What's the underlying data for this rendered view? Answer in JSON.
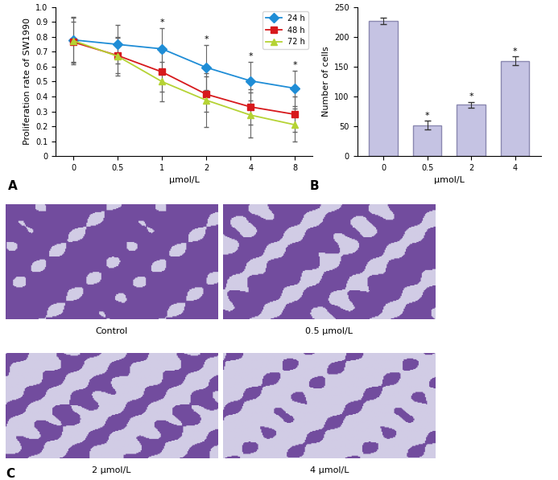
{
  "chart_data": [
    {
      "type": "line",
      "panel_label": "A",
      "x_label": "μmol/L",
      "y_label": "Proliferation rate of SW1990",
      "categories": [
        "0",
        "0.5",
        "1",
        "2",
        "4",
        "8"
      ],
      "ylim": [
        0,
        1.0
      ],
      "yticks": [
        0,
        0.1,
        0.2,
        0.3,
        0.4,
        0.5,
        0.6,
        0.7,
        0.8,
        0.9,
        {
          "value": 1,
          "label": "1.0"
        }
      ],
      "legend": "upper right",
      "significance": [
        null,
        null,
        "*",
        "*",
        "*",
        "*"
      ],
      "series": [
        {
          "name": "24 h",
          "color": "#1f8dd6",
          "marker": "diamond",
          "values": [
            0.78,
            0.75,
            0.72,
            0.595,
            0.505,
            0.455
          ],
          "errors": [
            0.15,
            0.13,
            0.14,
            0.15,
            0.13,
            0.12
          ]
        },
        {
          "name": "48 h",
          "color": "#d7191c",
          "marker": "square",
          "values": [
            0.765,
            0.675,
            0.565,
            0.415,
            0.33,
            0.28
          ],
          "errors": [
            0.14,
            0.12,
            0.13,
            0.12,
            0.12,
            0.12
          ]
        },
        {
          "name": "72 h",
          "color": "#b5d334",
          "marker": "triangle",
          "values": [
            0.775,
            0.67,
            0.5,
            0.375,
            0.275,
            0.21
          ],
          "errors": [
            0.16,
            0.13,
            0.13,
            0.18,
            0.15,
            0.11
          ]
        }
      ]
    },
    {
      "type": "bar",
      "panel_label": "B",
      "x_label": "μmol/L",
      "y_label": "Number of cells",
      "categories": [
        "0",
        "0.5",
        "2",
        "4"
      ],
      "values": [
        227,
        52,
        86,
        160
      ],
      "errors": [
        6,
        7,
        5,
        7
      ],
      "significance": [
        null,
        "*",
        "*",
        "*"
      ],
      "color": "#c5c3e3",
      "ylim": [
        0,
        250
      ],
      "yticks": [
        0,
        50,
        100,
        150,
        200,
        250
      ]
    }
  ],
  "panel_c": {
    "panel_label": "C",
    "captions": [
      "Control",
      "0.5 μmol/L",
      "2 μmol/L",
      "4 μmol/L"
    ]
  }
}
